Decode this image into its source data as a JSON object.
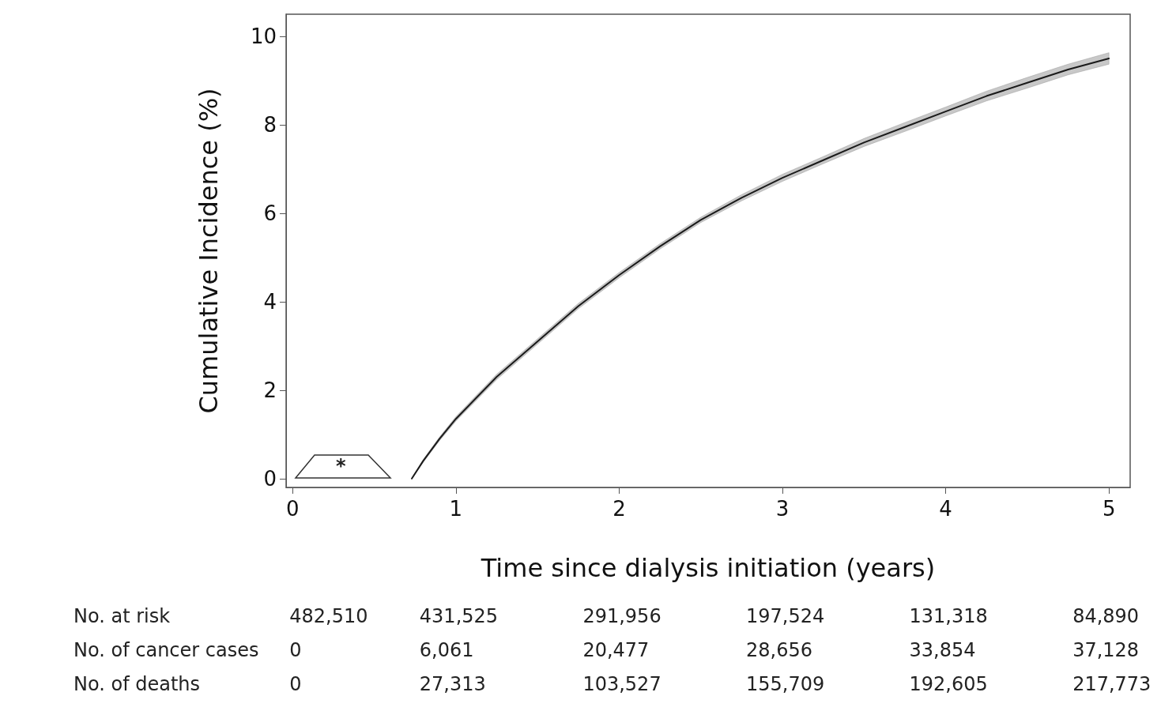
{
  "chart_data": {
    "type": "line",
    "xlabel": "Time since dialysis initiation (years)",
    "ylabel": "Cumulative Incidence (%)",
    "xlim": [
      -0.04,
      5.13
    ],
    "xticks": [
      0,
      1,
      2,
      3,
      4,
      5
    ],
    "ylim": [
      -0.2,
      10.5
    ],
    "yticks": [
      0,
      2,
      4,
      6,
      8,
      10
    ],
    "grid": false,
    "marker": "none",
    "line_style": "solid",
    "series": [
      {
        "color": "#1a1a1a",
        "x": [
          0.73,
          0.8,
          0.9,
          1,
          1.25,
          1.5,
          1.75,
          2,
          2.25,
          2.5,
          2.75,
          3,
          3.25,
          3.5,
          3.75,
          4,
          4.25,
          4.5,
          4.75,
          5
        ],
        "values": [
          0,
          0.4,
          0.9,
          1.35,
          2.3,
          3.1,
          3.9,
          4.6,
          5.25,
          5.85,
          6.35,
          6.8,
          7.2,
          7.6,
          7.95,
          8.3,
          8.65,
          8.95,
          9.25,
          9.5
        ],
        "lower": [
          0,
          0.37,
          0.86,
          1.3,
          2.24,
          3.04,
          3.84,
          4.54,
          5.19,
          5.79,
          6.28,
          6.72,
          7.12,
          7.51,
          7.85,
          8.2,
          8.54,
          8.83,
          9.13,
          9.37
        ],
        "upper": [
          0,
          0.43,
          0.94,
          1.4,
          2.36,
          3.16,
          3.96,
          4.66,
          5.31,
          5.91,
          6.42,
          6.88,
          7.28,
          7.69,
          8.05,
          8.4,
          8.76,
          9.07,
          9.37,
          9.63
        ]
      }
    ],
    "annotations": [
      "*",
      "No. at risk",
      "482,510",
      "431,525",
      "291,956",
      "197,524",
      "131,318",
      "84,890",
      "No. of cancer cases",
      "0",
      "6,061",
      "20,477",
      "28,656",
      "33,854",
      "37,128",
      "No. of deaths",
      "0",
      "27,313",
      "103,527",
      "155,709",
      "192,605",
      "217,773"
    ]
  }
}
